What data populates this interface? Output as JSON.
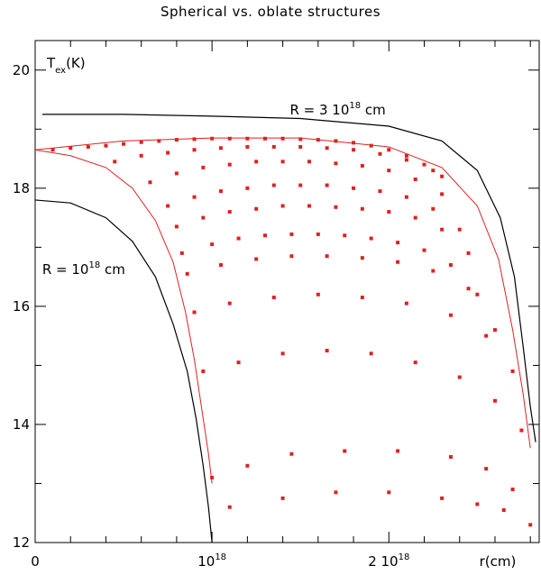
{
  "chart_data": {
    "type": "line",
    "title": "Spherical vs. oblate structures",
    "xlabel": "r(cm)",
    "ylabel": {
      "base": "T",
      "sub": "ex",
      "rest": "(K)"
    },
    "xlim": [
      0,
      2.85e+18
    ],
    "ylim": [
      12,
      20.5
    ],
    "x_ticks": [
      {
        "value": 0,
        "label": "0"
      },
      {
        "value": 1e+18,
        "mantissa": "",
        "base": "10",
        "exp": "18"
      },
      {
        "value": 2e+18,
        "mantissa": "2 ",
        "base": "10",
        "exp": "18"
      }
    ],
    "y_ticks": [
      {
        "value": 12,
        "label": "12"
      },
      {
        "value": 14,
        "label": "14"
      },
      {
        "value": 16,
        "label": "16"
      },
      {
        "value": 18,
        "label": "18"
      },
      {
        "value": 20,
        "label": "20"
      }
    ],
    "annotations": [
      {
        "prefix": "R = 3 10",
        "exp": "18",
        "suffix": " cm",
        "x": 1.44e+18,
        "y": 19.25
      },
      {
        "prefix": "R = 10",
        "exp": "18",
        "suffix": " cm",
        "x": 4e+16,
        "y": 16.55
      }
    ],
    "series": [
      {
        "color": "#000000",
        "style": "line",
        "x": [
          0,
          2e+17,
          4e+17,
          5.5e+17,
          6.8e+17,
          7.8e+17,
          8.6e+17,
          9.1e+17,
          9.5e+17,
          9.8e+17,
          1e+18
        ],
        "y": [
          17.8,
          17.75,
          17.5,
          17.1,
          16.5,
          15.7,
          14.9,
          14.1,
          13.3,
          12.6,
          12.0
        ]
      },
      {
        "color": "#000000",
        "style": "line",
        "x": [
          4e+16,
          5e+17,
          1e+18,
          1.5e+18,
          2e+18,
          2.3e+18,
          2.5e+18,
          2.63e+18,
          2.71e+18,
          2.76e+18,
          2.8e+18,
          2.83e+18
        ],
        "y": [
          19.25,
          19.25,
          19.22,
          19.18,
          19.05,
          18.8,
          18.3,
          17.5,
          16.5,
          15.3,
          14.3,
          13.7
        ]
      },
      {
        "color": "#e02020",
        "style": "line",
        "x": [
          0,
          2e+17,
          4e+17,
          5.5e+17,
          6.8e+17,
          7.8e+17,
          8.5e+17,
          9e+17,
          9.4e+17,
          9.8e+17,
          1e+18
        ],
        "y": [
          18.65,
          18.55,
          18.35,
          18.0,
          17.45,
          16.75,
          15.9,
          15.1,
          14.3,
          13.5,
          13.0
        ]
      },
      {
        "color": "#e02020",
        "style": "line",
        "x": [
          0,
          5e+17,
          1e+18,
          1.5e+18,
          2e+18,
          2.3e+18,
          2.5e+18,
          2.62e+18,
          2.7e+18,
          2.76e+18,
          2.8e+18
        ],
        "y": [
          18.65,
          18.8,
          18.85,
          18.85,
          18.7,
          18.35,
          17.7,
          16.8,
          15.6,
          14.5,
          13.6
        ]
      },
      {
        "color": "#e02020",
        "style": "markers",
        "x": [
          1e+17,
          2e+17,
          3e+17,
          4e+17,
          5e+17,
          6e+17,
          7e+17,
          8e+17,
          9e+17,
          1e+18,
          1.1e+18,
          1.2e+18,
          1.3e+18,
          1.4e+18,
          1.5e+18,
          1.6e+18,
          1.7e+18,
          1.8e+18,
          1.9e+18,
          2e+18,
          2.1e+18,
          2.2e+18,
          2.3e+18,
          4.5e+17,
          6e+17,
          7.5e+17,
          9e+17,
          1.05e+18,
          1.2e+18,
          1.35e+18,
          1.5e+18,
          1.65e+18,
          1.8e+18,
          1.95e+18,
          2.1e+18,
          2.25e+18,
          6.5e+17,
          8e+17,
          9.5e+17,
          1.1e+18,
          1.25e+18,
          1.4e+18,
          1.55e+18,
          1.7e+18,
          1.85e+18,
          2e+18,
          2.15e+18,
          2.3e+18,
          7.5e+17,
          9e+17,
          1.05e+18,
          1.2e+18,
          1.35e+18,
          1.5e+18,
          1.65e+18,
          1.8e+18,
          1.95e+18,
          2.1e+18,
          2.25e+18,
          2.4e+18,
          8e+17,
          9.5e+17,
          1.1e+18,
          1.25e+18,
          1.4e+18,
          1.55e+18,
          1.7e+18,
          1.85e+18,
          2e+18,
          2.15e+18,
          2.3e+18,
          2.45e+18,
          8.3e+17,
          1e+18,
          1.15e+18,
          1.3e+18,
          1.45e+18,
          1.6e+18,
          1.75e+18,
          1.9e+18,
          2.05e+18,
          2.2e+18,
          2.35e+18,
          2.5e+18,
          8.6e+17,
          1.05e+18,
          1.25e+18,
          1.45e+18,
          1.65e+18,
          1.85e+18,
          2.05e+18,
          2.25e+18,
          2.45e+18,
          2.6e+18,
          9e+17,
          1.1e+18,
          1.35e+18,
          1.6e+18,
          1.85e+18,
          2.1e+18,
          2.35e+18,
          2.55e+18,
          2.7e+18,
          9.5e+17,
          1.15e+18,
          1.4e+18,
          1.65e+18,
          1.9e+18,
          2.15e+18,
          2.4e+18,
          2.6e+18,
          2.75e+18,
          1e+18,
          1.2e+18,
          1.45e+18,
          1.75e+18,
          2.05e+18,
          2.35e+18,
          2.55e+18,
          2.7e+18,
          1.1e+18,
          1.4e+18,
          1.7e+18,
          2e+18,
          2.3e+18,
          2.5e+18,
          2.65e+18,
          2.8e+18
        ],
        "y": [
          18.65,
          18.68,
          18.7,
          18.72,
          18.75,
          18.78,
          18.8,
          18.82,
          18.83,
          18.84,
          18.84,
          18.84,
          18.84,
          18.84,
          18.83,
          18.82,
          18.8,
          18.77,
          18.72,
          18.65,
          18.55,
          18.4,
          18.2,
          18.45,
          18.55,
          18.6,
          18.65,
          18.68,
          18.7,
          18.7,
          18.7,
          18.68,
          18.65,
          18.58,
          18.48,
          18.3,
          18.1,
          18.25,
          18.35,
          18.4,
          18.45,
          18.45,
          18.45,
          18.42,
          18.38,
          18.3,
          18.15,
          17.9,
          17.7,
          17.85,
          17.95,
          18.0,
          18.05,
          18.05,
          18.05,
          18.0,
          17.95,
          17.85,
          17.65,
          17.3,
          17.35,
          17.5,
          17.6,
          17.65,
          17.7,
          17.7,
          17.68,
          17.65,
          17.6,
          17.5,
          17.3,
          16.9,
          16.9,
          17.05,
          17.15,
          17.2,
          17.22,
          17.22,
          17.2,
          17.15,
          17.08,
          16.95,
          16.7,
          16.2,
          16.55,
          16.7,
          16.8,
          16.85,
          16.85,
          16.82,
          16.75,
          16.6,
          16.3,
          15.6,
          15.9,
          16.05,
          16.15,
          16.2,
          16.15,
          16.05,
          15.85,
          15.5,
          14.9,
          14.9,
          15.05,
          15.2,
          15.25,
          15.2,
          15.05,
          14.8,
          14.4,
          13.9,
          13.1,
          13.3,
          13.5,
          13.55,
          13.55,
          13.45,
          13.25,
          12.9,
          12.6,
          12.75,
          12.85,
          12.85,
          12.75,
          12.65,
          12.55,
          12.3
        ]
      }
    ]
  }
}
